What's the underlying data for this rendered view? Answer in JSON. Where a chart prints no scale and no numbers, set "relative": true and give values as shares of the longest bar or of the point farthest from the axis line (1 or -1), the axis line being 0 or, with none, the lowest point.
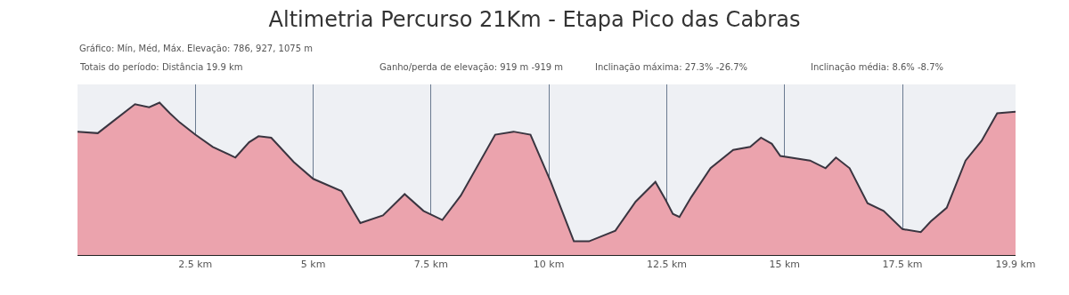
{
  "chart_data": {
    "type": "area",
    "title": "Altimetria Percurso 21Km - Etapa Pico das Cabras",
    "relative": true,
    "annotations": [
      "Gráfico: Mín, Méd, Máx. Elevação: 786, 927, 1075 m",
      "Totais do período: Distância 19.9 km",
      "Ganho/perda de elevação: 919 m -919 m",
      "Inclinação máxima: 27.3% -26.7%",
      "Inclinação média: 8.6% -8.7%"
    ],
    "x": [
      0,
      0.43,
      0.72,
      1.22,
      1.52,
      1.74,
      1.96,
      2.17,
      2.5,
      2.87,
      3.35,
      3.64,
      3.84,
      4.11,
      4.59,
      5.0,
      5.6,
      6.0,
      6.48,
      6.94,
      7.34,
      7.74,
      8.13,
      8.86,
      9.25,
      9.61,
      10.04,
      10.53,
      10.85,
      11.41,
      11.84,
      12.26,
      12.48,
      12.63,
      12.77,
      13.02,
      13.43,
      13.91,
      14.27,
      14.5,
      14.73,
      14.91,
      15.54,
      15.87,
      16.09,
      16.38,
      16.76,
      17.1,
      17.5,
      17.89,
      18.1,
      18.44,
      18.84,
      19.18,
      19.51,
      19.9
    ],
    "series": [
      {
        "color": "#eba3ad",
        "values": [
          0.81,
          0.8,
          0.87,
          0.99,
          0.97,
          1.0,
          0.93,
          0.87,
          0.79,
          0.71,
          0.64,
          0.74,
          0.78,
          0.77,
          0.61,
          0.5,
          0.42,
          0.21,
          0.26,
          0.4,
          0.29,
          0.23,
          0.39,
          0.79,
          0.81,
          0.79,
          0.48,
          0.09,
          0.09,
          0.16,
          0.35,
          0.48,
          0.36,
          0.27,
          0.25,
          0.38,
          0.57,
          0.69,
          0.71,
          0.77,
          0.73,
          0.65,
          0.62,
          0.57,
          0.64,
          0.57,
          0.34,
          0.29,
          0.17,
          0.15,
          0.22,
          0.31,
          0.62,
          0.75,
          0.93,
          0.94
        ]
      }
    ],
    "xlim": [
      0,
      19.9
    ],
    "xticks": [
      {
        "value": 2.5,
        "label": "2.5 km"
      },
      {
        "value": 5,
        "label": "5 km"
      },
      {
        "value": 7.5,
        "label": "7.5 km"
      },
      {
        "value": 10,
        "label": "10 km"
      },
      {
        "value": 12.5,
        "label": "12.5 km"
      },
      {
        "value": 15,
        "label": "15 km"
      },
      {
        "value": 17.5,
        "label": "17.5 km"
      },
      {
        "value": 19.9,
        "label": "19.9 km"
      }
    ],
    "grid": "x"
  }
}
